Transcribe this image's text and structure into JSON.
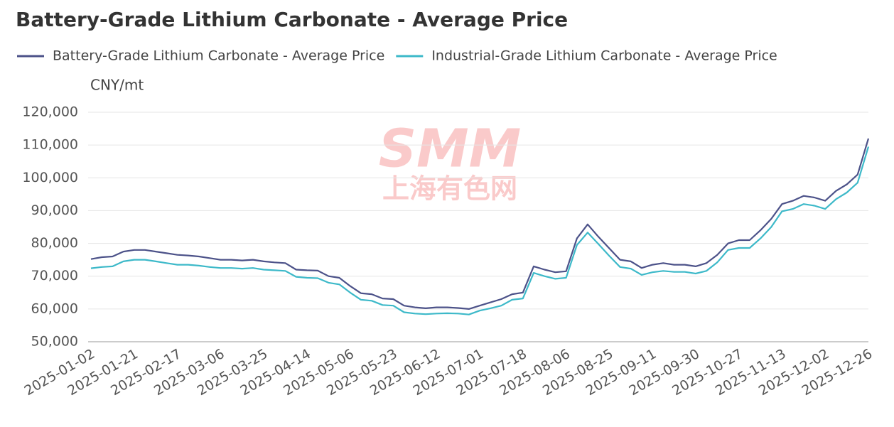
{
  "chart_data": {
    "type": "line",
    "title": "Battery-Grade Lithium Carbonate - Average Price",
    "y_label": "CNY/mt",
    "watermark": {
      "logo": "SMM",
      "text": "上海有色网"
    },
    "categories": [
      "2025-01-02",
      null,
      null,
      null,
      "2025-01-21",
      null,
      null,
      null,
      "2025-02-17",
      null,
      null,
      null,
      "2025-03-06",
      null,
      null,
      null,
      "2025-03-25",
      null,
      null,
      null,
      "2025-04-14",
      null,
      null,
      null,
      "2025-05-06",
      null,
      null,
      null,
      "2025-05-23",
      null,
      null,
      null,
      "2025-06-12",
      null,
      null,
      null,
      "2025-07-01",
      null,
      null,
      null,
      "2025-07-18",
      null,
      null,
      null,
      "2025-08-06",
      null,
      null,
      null,
      "2025-08-25",
      null,
      null,
      null,
      "2025-09-11",
      null,
      null,
      null,
      "2025-09-30",
      null,
      null,
      null,
      "2025-10-27",
      null,
      null,
      null,
      "2025-11-13",
      null,
      null,
      null,
      "2025-12-02",
      null,
      null,
      null,
      "2025-12-26"
    ],
    "series": [
      {
        "name": "Battery-Grade Lithium Carbonate - Average Price",
        "color": "#4c5289",
        "values": [
          75200,
          75800,
          76000,
          77500,
          78000,
          78000,
          77500,
          77000,
          76500,
          76300,
          76000,
          75500,
          75000,
          75000,
          74800,
          75000,
          74500,
          74200,
          74000,
          72000,
          71800,
          71700,
          70000,
          69500,
          67000,
          64800,
          64500,
          63200,
          63000,
          61000,
          60500,
          60200,
          60500,
          60500,
          60300,
          60000,
          61000,
          62000,
          63000,
          64500,
          65000,
          73000,
          72000,
          71200,
          71500,
          81500,
          85800,
          82000,
          78500,
          75000,
          74500,
          72500,
          73500,
          74000,
          73500,
          73500,
          73000,
          74000,
          76500,
          80000,
          81000,
          81000,
          84000,
          87500,
          92000,
          93000,
          94500,
          94000,
          93000,
          96000,
          98000,
          101000,
          112000
        ]
      },
      {
        "name": "Industrial-Grade Lithium Carbonate - Average Price",
        "color": "#3db9c9",
        "values": [
          72400,
          72800,
          73000,
          74500,
          75000,
          75000,
          74500,
          74000,
          73500,
          73500,
          73200,
          72800,
          72500,
          72500,
          72300,
          72500,
          72000,
          71800,
          71600,
          69800,
          69500,
          69400,
          68000,
          67500,
          65000,
          62800,
          62500,
          61200,
          61000,
          59000,
          58600,
          58400,
          58600,
          58700,
          58600,
          58300,
          59500,
          60200,
          61000,
          62800,
          63200,
          71000,
          70000,
          69200,
          69500,
          79500,
          83300,
          79800,
          76200,
          72800,
          72300,
          70400,
          71200,
          71600,
          71300,
          71300,
          70800,
          71600,
          74200,
          78000,
          78600,
          78600,
          81500,
          85000,
          89800,
          90500,
          92000,
          91500,
          90500,
          93500,
          95500,
          98500,
          109500
        ]
      }
    ],
    "ylim": [
      50000,
      120000
    ],
    "yticks": [
      {
        "value": 50000,
        "label": "50,000"
      },
      {
        "value": 60000,
        "label": "60,000"
      },
      {
        "value": 70000,
        "label": "70,000"
      },
      {
        "value": 80000,
        "label": "80,000"
      },
      {
        "value": 90000,
        "label": "90,000"
      },
      {
        "value": 100000,
        "label": "100,000"
      },
      {
        "value": 110000,
        "label": "110,000"
      },
      {
        "value": 120000,
        "label": "120,000"
      }
    ],
    "grid": true
  }
}
